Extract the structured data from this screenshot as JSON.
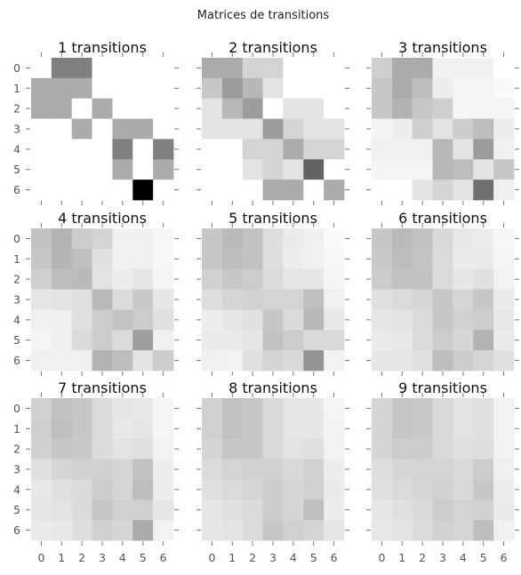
{
  "suptitle": "Matrices de transitions",
  "chart_data": {
    "type": "heatmap",
    "colormap": "gray_r",
    "value_range": [
      0,
      1
    ],
    "grid": false,
    "x_ticks": [
      "0",
      "1",
      "2",
      "3",
      "4",
      "5",
      "6"
    ],
    "y_ticks": [
      "0",
      "1",
      "2",
      "3",
      "4",
      "5",
      "6"
    ],
    "panels": [
      {
        "title": "1 transitions",
        "matrix": [
          [
            0.0,
            0.5,
            0.5,
            0.0,
            0.0,
            0.0,
            0.0
          ],
          [
            0.33,
            0.33,
            0.33,
            0.0,
            0.0,
            0.0,
            0.0
          ],
          [
            0.33,
            0.33,
            0.0,
            0.33,
            0.0,
            0.0,
            0.0
          ],
          [
            0.0,
            0.0,
            0.33,
            0.0,
            0.33,
            0.33,
            0.0
          ],
          [
            0.0,
            0.0,
            0.0,
            0.0,
            0.5,
            0.0,
            0.5
          ],
          [
            0.0,
            0.0,
            0.0,
            0.0,
            0.33,
            0.0,
            0.33
          ],
          [
            0.0,
            0.0,
            0.0,
            0.0,
            0.0,
            1.0,
            0.0
          ]
        ]
      },
      {
        "title": "2 transitions",
        "matrix": [
          [
            0.33,
            0.33,
            0.17,
            0.17,
            0.0,
            0.0,
            0.0
          ],
          [
            0.22,
            0.39,
            0.28,
            0.11,
            0.0,
            0.0,
            0.0
          ],
          [
            0.11,
            0.28,
            0.39,
            0.0,
            0.11,
            0.11,
            0.0
          ],
          [
            0.11,
            0.11,
            0.11,
            0.39,
            0.17,
            0.11,
            0.11
          ],
          [
            0.0,
            0.0,
            0.17,
            0.17,
            0.33,
            0.17,
            0.17
          ],
          [
            0.0,
            0.0,
            0.11,
            0.17,
            0.11,
            0.61,
            0.0
          ],
          [
            0.0,
            0.0,
            0.0,
            0.33,
            0.33,
            0.0,
            0.33
          ]
        ]
      },
      {
        "title": "3 transitions",
        "matrix": [
          [
            0.19,
            0.33,
            0.33,
            0.06,
            0.06,
            0.06,
            0.0
          ],
          [
            0.22,
            0.33,
            0.26,
            0.07,
            0.04,
            0.04,
            0.02
          ],
          [
            0.22,
            0.3,
            0.22,
            0.19,
            0.04,
            0.04,
            0.04
          ],
          [
            0.04,
            0.07,
            0.19,
            0.11,
            0.2,
            0.26,
            0.07
          ],
          [
            0.06,
            0.06,
            0.06,
            0.28,
            0.11,
            0.39,
            0.06
          ],
          [
            0.04,
            0.04,
            0.04,
            0.28,
            0.26,
            0.11,
            0.22
          ],
          [
            0.0,
            0.0,
            0.11,
            0.17,
            0.11,
            0.56,
            0.06
          ]
        ]
      },
      {
        "title": "4 transitions",
        "matrix": [
          [
            0.24,
            0.3,
            0.2,
            0.17,
            0.06,
            0.06,
            0.03
          ],
          [
            0.22,
            0.29,
            0.25,
            0.12,
            0.06,
            0.06,
            0.03
          ],
          [
            0.19,
            0.26,
            0.27,
            0.11,
            0.07,
            0.1,
            0.04
          ],
          [
            0.1,
            0.11,
            0.12,
            0.27,
            0.14,
            0.21,
            0.1
          ],
          [
            0.06,
            0.06,
            0.12,
            0.2,
            0.23,
            0.2,
            0.12
          ],
          [
            0.04,
            0.06,
            0.14,
            0.2,
            0.14,
            0.38,
            0.06
          ],
          [
            0.06,
            0.06,
            0.06,
            0.3,
            0.26,
            0.11,
            0.2
          ]
        ]
      },
      {
        "title": "5 transitions",
        "matrix": [
          [
            0.22,
            0.27,
            0.24,
            0.13,
            0.08,
            0.06,
            0.02
          ],
          [
            0.22,
            0.26,
            0.24,
            0.13,
            0.07,
            0.06,
            0.03
          ],
          [
            0.18,
            0.22,
            0.2,
            0.14,
            0.1,
            0.1,
            0.04
          ],
          [
            0.13,
            0.16,
            0.18,
            0.17,
            0.17,
            0.25,
            0.06
          ],
          [
            0.07,
            0.1,
            0.12,
            0.22,
            0.14,
            0.28,
            0.09
          ],
          [
            0.08,
            0.08,
            0.1,
            0.24,
            0.2,
            0.15,
            0.15
          ],
          [
            0.06,
            0.05,
            0.12,
            0.17,
            0.15,
            0.42,
            0.05
          ]
        ]
      },
      {
        "title": "6 transitions",
        "matrix": [
          [
            0.22,
            0.27,
            0.24,
            0.15,
            0.09,
            0.07,
            0.03
          ],
          [
            0.21,
            0.26,
            0.23,
            0.14,
            0.08,
            0.08,
            0.04
          ],
          [
            0.2,
            0.24,
            0.24,
            0.14,
            0.1,
            0.12,
            0.05
          ],
          [
            0.12,
            0.14,
            0.16,
            0.22,
            0.16,
            0.22,
            0.08
          ],
          [
            0.1,
            0.11,
            0.14,
            0.22,
            0.18,
            0.2,
            0.09
          ],
          [
            0.08,
            0.09,
            0.14,
            0.2,
            0.16,
            0.3,
            0.08
          ],
          [
            0.1,
            0.1,
            0.12,
            0.26,
            0.2,
            0.16,
            0.12
          ]
        ]
      },
      {
        "title": "7 transitions",
        "matrix": [
          [
            0.18,
            0.24,
            0.22,
            0.14,
            0.1,
            0.09,
            0.04
          ],
          [
            0.19,
            0.25,
            0.22,
            0.14,
            0.09,
            0.1,
            0.04
          ],
          [
            0.18,
            0.22,
            0.21,
            0.14,
            0.11,
            0.12,
            0.05
          ],
          [
            0.12,
            0.16,
            0.18,
            0.18,
            0.16,
            0.24,
            0.07
          ],
          [
            0.09,
            0.12,
            0.14,
            0.2,
            0.16,
            0.26,
            0.07
          ],
          [
            0.1,
            0.11,
            0.14,
            0.22,
            0.18,
            0.18,
            0.1
          ],
          [
            0.08,
            0.09,
            0.13,
            0.18,
            0.16,
            0.33,
            0.05
          ]
        ]
      },
      {
        "title": "8 transitions",
        "matrix": [
          [
            0.18,
            0.24,
            0.22,
            0.15,
            0.1,
            0.1,
            0.04
          ],
          [
            0.18,
            0.24,
            0.22,
            0.15,
            0.1,
            0.1,
            0.05
          ],
          [
            0.17,
            0.22,
            0.22,
            0.15,
            0.11,
            0.12,
            0.05
          ],
          [
            0.14,
            0.17,
            0.18,
            0.18,
            0.15,
            0.18,
            0.07
          ],
          [
            0.12,
            0.14,
            0.16,
            0.2,
            0.16,
            0.18,
            0.08
          ],
          [
            0.1,
            0.12,
            0.14,
            0.2,
            0.16,
            0.25,
            0.07
          ],
          [
            0.1,
            0.11,
            0.14,
            0.22,
            0.18,
            0.17,
            0.1
          ]
        ]
      },
      {
        "title": "9 transitions",
        "matrix": [
          [
            0.16,
            0.22,
            0.21,
            0.15,
            0.11,
            0.12,
            0.05
          ],
          [
            0.16,
            0.22,
            0.21,
            0.15,
            0.11,
            0.12,
            0.05
          ],
          [
            0.16,
            0.2,
            0.2,
            0.15,
            0.12,
            0.13,
            0.05
          ],
          [
            0.13,
            0.16,
            0.17,
            0.17,
            0.15,
            0.2,
            0.06
          ],
          [
            0.12,
            0.14,
            0.16,
            0.18,
            0.15,
            0.22,
            0.07
          ],
          [
            0.1,
            0.12,
            0.15,
            0.2,
            0.17,
            0.18,
            0.08
          ],
          [
            0.09,
            0.11,
            0.14,
            0.18,
            0.16,
            0.26,
            0.06
          ]
        ]
      }
    ]
  }
}
